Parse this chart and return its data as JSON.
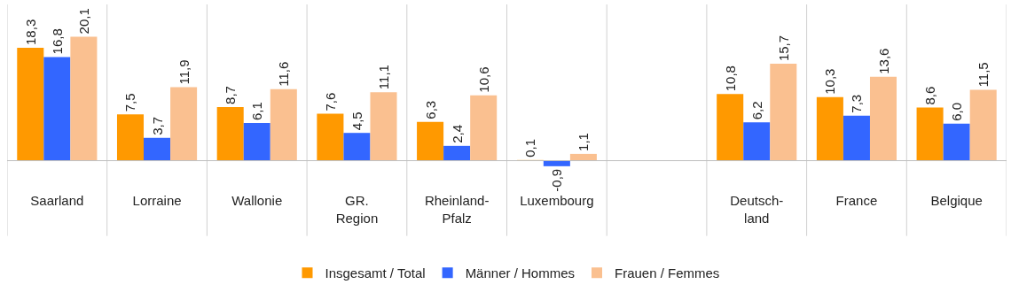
{
  "chart_data": {
    "type": "bar",
    "categories": [
      "Saarland",
      "Lorraine",
      "Wallonie",
      "GR.\nRegion",
      "Rheinland-\nPfalz",
      "Luxembourg",
      null,
      "Deutsch-\nland",
      "France",
      "Belgique"
    ],
    "series": [
      {
        "name": "Insgesamt / Total",
        "color": "#ff9900",
        "values": [
          18.3,
          7.5,
          8.7,
          7.6,
          6.3,
          0.1,
          null,
          10.8,
          10.3,
          8.6
        ],
        "value_labels": [
          "18,3",
          "7,5",
          "8,7",
          "7,6",
          "6,3",
          "0,1",
          null,
          "10,8",
          "10,3",
          "8,6"
        ]
      },
      {
        "name": "Männer / Hommes",
        "color": "#3366ff",
        "values": [
          16.8,
          3.7,
          6.1,
          4.5,
          2.4,
          -0.9,
          null,
          6.2,
          7.3,
          6.0
        ],
        "value_labels": [
          "16,8",
          "3,7",
          "6,1",
          "4,5",
          "2,4",
          "-0,9",
          null,
          "6,2",
          "7,3",
          "6,0"
        ]
      },
      {
        "name": "Frauen / Femmes",
        "color": "#fac090",
        "values": [
          20.1,
          11.9,
          11.6,
          11.1,
          10.6,
          1.1,
          null,
          15.7,
          13.6,
          11.5
        ],
        "value_labels": [
          "20,1",
          "11,9",
          "11,6",
          "11,1",
          "10,6",
          "1,1",
          null,
          "15,7",
          "13,6",
          "11,5"
        ]
      }
    ],
    "grid": "x",
    "legend": "bottom"
  }
}
